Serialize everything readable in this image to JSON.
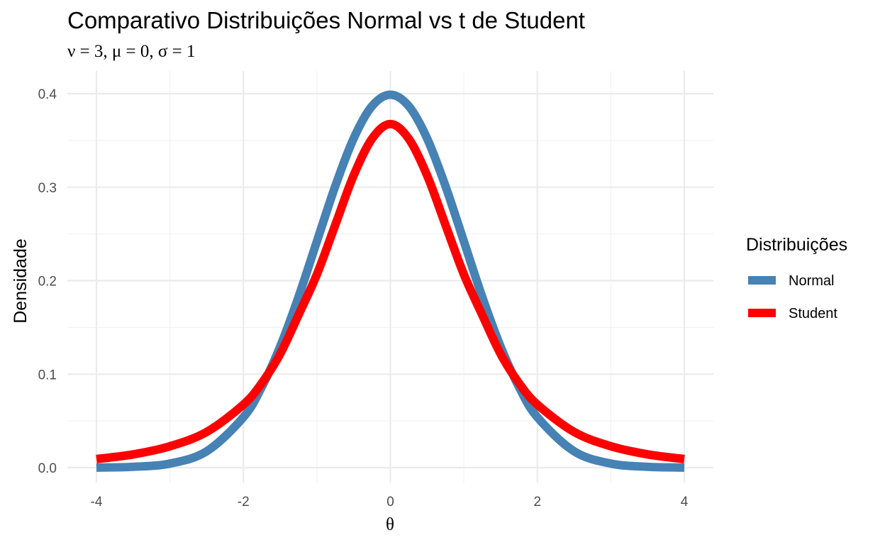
{
  "chart_data": {
    "type": "line",
    "title": "Comparativo Distribuições Normal vs t de Student",
    "subtitle": "ν = 3, μ = 0, σ = 1",
    "xlabel": "θ",
    "ylabel": "Densidade",
    "xlim": [
      -4,
      4
    ],
    "ylim": [
      0,
      0.4
    ],
    "x_ticks": [
      -4,
      -2,
      0,
      2,
      4
    ],
    "x_tick_labels": [
      "-4",
      "-2",
      "0",
      "2",
      "4"
    ],
    "y_ticks": [
      0,
      0.1,
      0.2,
      0.3,
      0.4
    ],
    "y_tick_labels": [
      "0.0",
      "0.1",
      "0.2",
      "0.3",
      "0.4"
    ],
    "grid": true,
    "legend": {
      "title": "Distribuições",
      "position": "right"
    },
    "x": [
      -4,
      -3.5,
      -3,
      -2.5,
      -2,
      -1.75,
      -1.5,
      -1.25,
      -1,
      -0.75,
      -0.5,
      -0.25,
      0,
      0.25,
      0.5,
      0.75,
      1,
      1.25,
      1.5,
      1.75,
      2,
      2.5,
      3,
      3.5,
      4
    ],
    "series": [
      {
        "name": "Normal",
        "color": "#4682B4",
        "values": [
          0.0001,
          0.0009,
          0.0044,
          0.0175,
          0.054,
          0.0863,
          0.1295,
          0.1826,
          0.242,
          0.3011,
          0.3521,
          0.3867,
          0.3989,
          0.3867,
          0.3521,
          0.3011,
          0.242,
          0.1826,
          0.1295,
          0.0863,
          0.054,
          0.0175,
          0.0044,
          0.0009,
          0.0001
        ]
      },
      {
        "name": "Student",
        "color": "#FF0000",
        "values": [
          0.0092,
          0.0142,
          0.0229,
          0.0382,
          0.0675,
          0.0904,
          0.1216,
          0.1633,
          0.2067,
          0.2596,
          0.3125,
          0.3518,
          0.3676,
          0.3518,
          0.3125,
          0.2596,
          0.2067,
          0.1633,
          0.1216,
          0.0904,
          0.0675,
          0.0382,
          0.0229,
          0.0142,
          0.0092
        ]
      }
    ]
  }
}
